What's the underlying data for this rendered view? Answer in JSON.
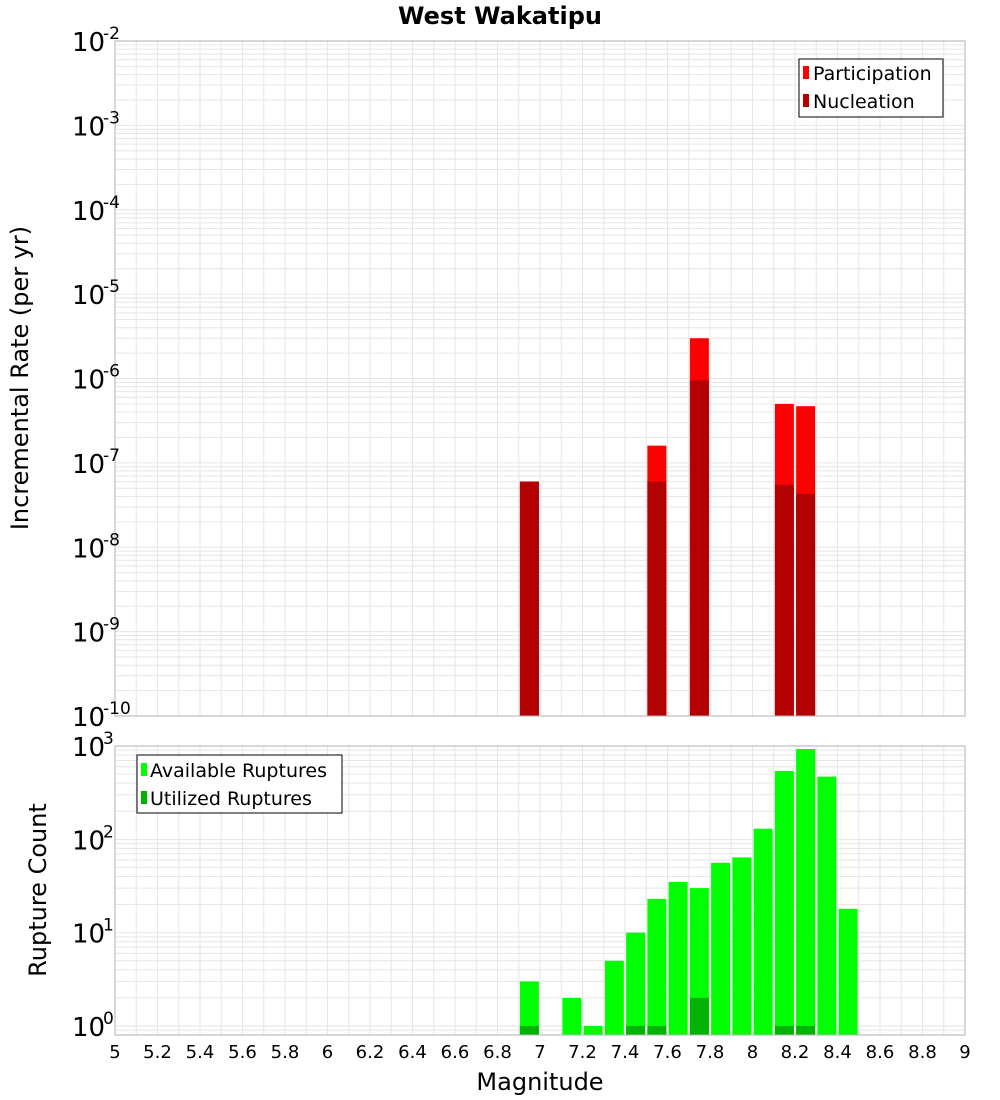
{
  "chart_data": [
    {
      "type": "bar",
      "title": "West Wakatipu",
      "ylabel": "Incremental Rate (per yr)",
      "xlabel": "",
      "xlim": [
        5,
        9
      ],
      "ylim": [
        1e-10,
        0.01
      ],
      "y_scale": "log",
      "y_ticks": [
        {
          "base": "10",
          "exp": "-10",
          "value": 1e-10
        },
        {
          "base": "10",
          "exp": "-9",
          "value": 1e-09
        },
        {
          "base": "10",
          "exp": "-8",
          "value": 1e-08
        },
        {
          "base": "10",
          "exp": "-7",
          "value": 1e-07
        },
        {
          "base": "10",
          "exp": "-6",
          "value": 1e-06
        },
        {
          "base": "10",
          "exp": "-5",
          "value": 1e-05
        },
        {
          "base": "10",
          "exp": "-4",
          "value": 0.0001
        },
        {
          "base": "10",
          "exp": "-3",
          "value": 0.001
        },
        {
          "base": "10",
          "exp": "-2",
          "value": 0.01
        }
      ],
      "grid": true,
      "legend_position": "top-right",
      "series": [
        {
          "name": "Participation",
          "color": "#ff0000",
          "points": [
            {
              "x": 6.95,
              "y": 6e-08
            },
            {
              "x": 7.55,
              "y": 1.6e-07
            },
            {
              "x": 7.75,
              "y": 3e-06
            },
            {
              "x": 8.15,
              "y": 5e-07
            },
            {
              "x": 8.25,
              "y": 4.7e-07
            }
          ]
        },
        {
          "name": "Nucleation",
          "color": "#b30000",
          "points": [
            {
              "x": 6.95,
              "y": 6e-08
            },
            {
              "x": 7.55,
              "y": 6e-08
            },
            {
              "x": 7.75,
              "y": 9.5e-07
            },
            {
              "x": 8.15,
              "y": 5.5e-08
            },
            {
              "x": 8.25,
              "y": 4.3e-08
            }
          ]
        }
      ]
    },
    {
      "type": "bar",
      "title": "",
      "ylabel": "Rupture Count",
      "xlabel": "Magnitude",
      "xlim": [
        5,
        9
      ],
      "ylim": [
        0.8,
        1000
      ],
      "y_scale": "log",
      "x_ticks": [
        "5",
        "5.2",
        "5.4",
        "5.6",
        "5.8",
        "6",
        "6.2",
        "6.4",
        "6.6",
        "6.8",
        "7",
        "7.2",
        "7.4",
        "7.6",
        "7.8",
        "8",
        "8.2",
        "8.4",
        "8.6",
        "8.8",
        "9"
      ],
      "y_ticks": [
        {
          "base": "10",
          "exp": "0",
          "value": 1
        },
        {
          "base": "10",
          "exp": "1",
          "value": 10
        },
        {
          "base": "10",
          "exp": "2",
          "value": 100
        },
        {
          "base": "10",
          "exp": "3",
          "value": 1000
        }
      ],
      "grid": true,
      "legend_position": "top-left",
      "series": [
        {
          "name": "Available Ruptures",
          "color": "#00ff00",
          "points": [
            {
              "x": 6.95,
              "y": 3
            },
            {
              "x": 7.15,
              "y": 2
            },
            {
              "x": 7.25,
              "y": 1
            },
            {
              "x": 7.35,
              "y": 5
            },
            {
              "x": 7.45,
              "y": 10
            },
            {
              "x": 7.55,
              "y": 23
            },
            {
              "x": 7.65,
              "y": 35
            },
            {
              "x": 7.75,
              "y": 30
            },
            {
              "x": 7.85,
              "y": 56
            },
            {
              "x": 7.95,
              "y": 64
            },
            {
              "x": 8.05,
              "y": 130
            },
            {
              "x": 8.15,
              "y": 540
            },
            {
              "x": 8.25,
              "y": 930
            },
            {
              "x": 8.35,
              "y": 470
            },
            {
              "x": 8.45,
              "y": 18
            }
          ]
        },
        {
          "name": "Utilized Ruptures",
          "color": "#00b300",
          "points": [
            {
              "x": 6.95,
              "y": 1
            },
            {
              "x": 7.45,
              "y": 1
            },
            {
              "x": 7.55,
              "y": 1
            },
            {
              "x": 7.75,
              "y": 2
            },
            {
              "x": 8.15,
              "y": 1
            },
            {
              "x": 8.25,
              "y": 1
            }
          ]
        }
      ]
    }
  ]
}
